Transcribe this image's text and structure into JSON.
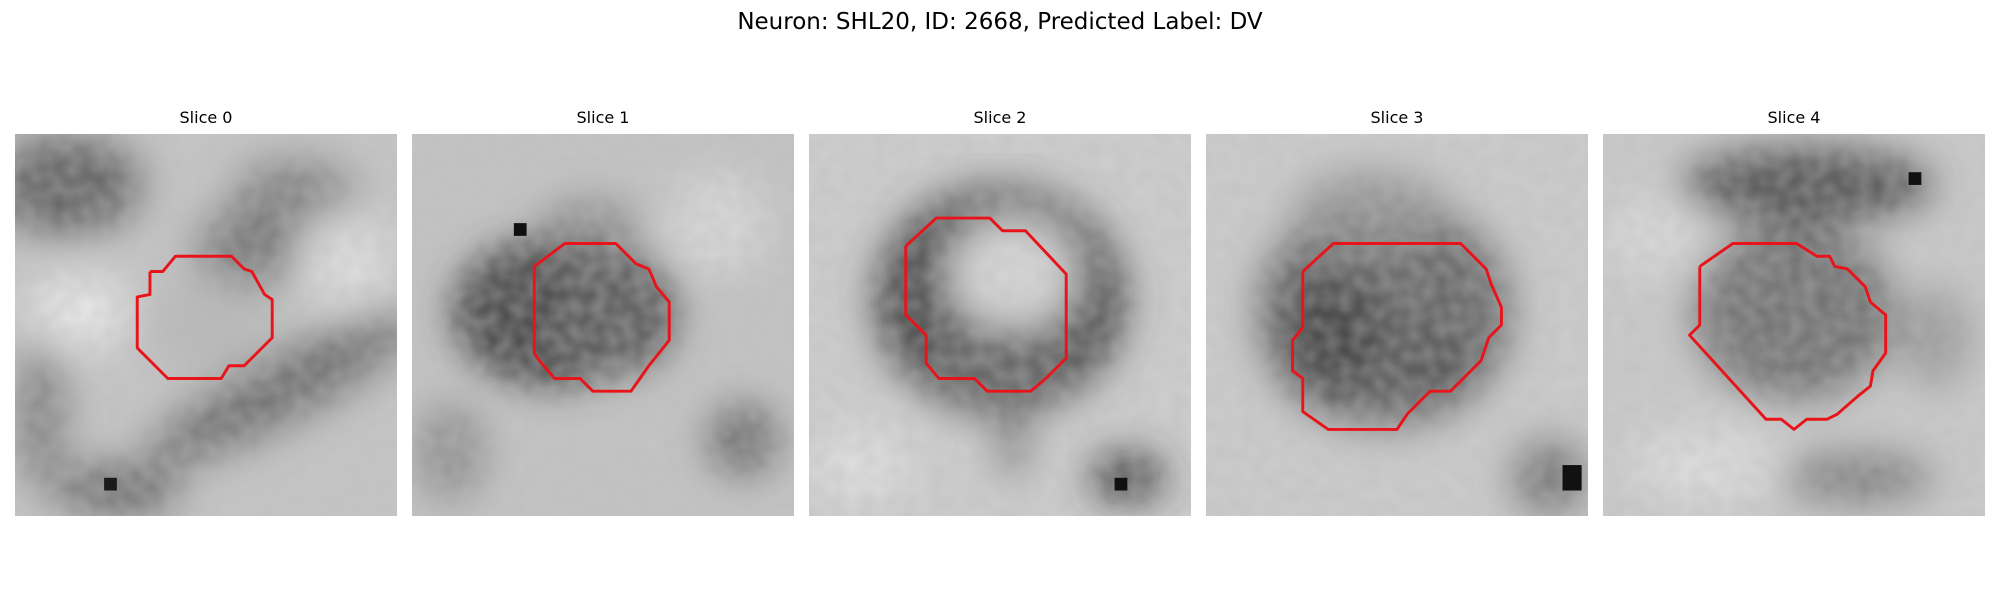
{
  "figure": {
    "title": "Neuron: SHL20, ID: 2668, Predicted Label: DV"
  },
  "panels": [
    {
      "title": "Slice 0"
    },
    {
      "title": "Slice 1"
    },
    {
      "title": "Slice 2"
    },
    {
      "title": "Slice 3"
    },
    {
      "title": "Slice 4"
    }
  ],
  "colors": {
    "contour": "#e8141a",
    "background": "#ffffff",
    "colormap": "grayscale"
  }
}
